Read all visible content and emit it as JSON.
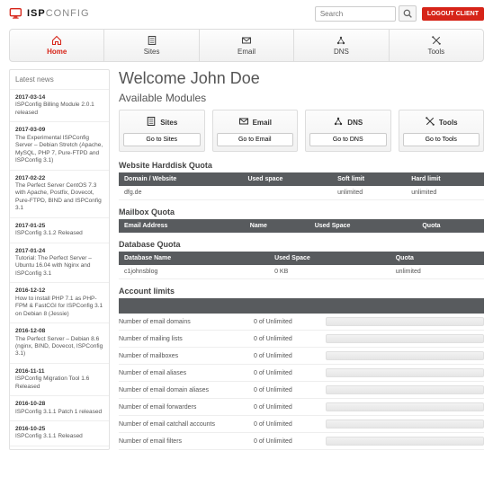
{
  "brand": {
    "isp": "ISP",
    "config": "CONFIG"
  },
  "search": {
    "placeholder": "Search"
  },
  "logout": "LOGOUT CLIENT",
  "nav": [
    {
      "label": "Home",
      "active": true
    },
    {
      "label": "Sites"
    },
    {
      "label": "Email"
    },
    {
      "label": "DNS"
    },
    {
      "label": "Tools"
    }
  ],
  "news_title": "Latest news",
  "news": [
    {
      "date": "2017-03-14",
      "text": "ISPConfig Billing Module 2.0.1 released"
    },
    {
      "date": "2017-03-09",
      "text": "The Experimental ISPConfig Server – Debian Stretch (Apache, MySQL, PHP 7, Pure-FTPD and ISPConfig 3.1)"
    },
    {
      "date": "2017-02-22",
      "text": "The Perfect Server CentOS 7.3 with Apache, Postfix, Dovecot, Pure-FTPD, BIND and ISPConfig 3.1"
    },
    {
      "date": "2017-01-25",
      "text": "ISPConfig 3.1.2 Released"
    },
    {
      "date": "2017-01-24",
      "text": "Tutorial: The Perfect Server – Ubuntu 16.04 with Nginx and ISPConfig 3.1"
    },
    {
      "date": "2016-12-12",
      "text": "How to install PHP 7.1 as PHP-FPM & FastCGI for ISPConfig 3.1 on Debian 8 (Jessie)"
    },
    {
      "date": "2016-12-08",
      "text": "The Perfect Server – Debian 8.6 (nginx, BIND, Dovecot, ISPConfig 3.1)"
    },
    {
      "date": "2016-11-11",
      "text": "ISPConfig Migration Tool 1.6 Released"
    },
    {
      "date": "2016-10-28",
      "text": "ISPConfig 3.1.1 Patch 1 released"
    },
    {
      "date": "2016-10-25",
      "text": "ISPConfig 3.1.1 Released"
    }
  ],
  "welcome": "Welcome John Doe",
  "modules_title": "Available Modules",
  "modules": [
    {
      "label": "Sites",
      "btn": "Go to Sites"
    },
    {
      "label": "Email",
      "btn": "Go to Email"
    },
    {
      "label": "DNS",
      "btn": "Go to DNS"
    },
    {
      "label": "Tools",
      "btn": "Go to Tools"
    }
  ],
  "hd_quota": {
    "title": "Website Harddisk Quota",
    "cols": [
      "Domain / Website",
      "Used space",
      "Soft limit",
      "Hard limit"
    ],
    "rows": [
      [
        "dfg.de",
        "",
        "unlimited",
        "unlimited"
      ]
    ]
  },
  "mb_quota": {
    "title": "Mailbox Quota",
    "cols": [
      "Email Address",
      "Name",
      "Used Space",
      "Quota"
    ],
    "rows": []
  },
  "db_quota": {
    "title": "Database Quota",
    "cols": [
      "Database Name",
      "Used Space",
      "Quota"
    ],
    "rows": [
      [
        "c1johnsblog",
        "0 KB",
        "unlimited"
      ]
    ]
  },
  "limits": {
    "title": "Account limits",
    "rows": [
      {
        "name": "Number of email domains",
        "val": "0 of Unlimited"
      },
      {
        "name": "Number of mailing lists",
        "val": "0 of Unlimited"
      },
      {
        "name": "Number of mailboxes",
        "val": "0 of Unlimited"
      },
      {
        "name": "Number of email aliases",
        "val": "0 of Unlimited"
      },
      {
        "name": "Number of email domain aliases",
        "val": "0 of Unlimited"
      },
      {
        "name": "Number of email forwarders",
        "val": "0 of Unlimited"
      },
      {
        "name": "Number of email catchall accounts",
        "val": "0 of Unlimited"
      },
      {
        "name": "Number of email filters",
        "val": "0 of Unlimited"
      }
    ]
  }
}
